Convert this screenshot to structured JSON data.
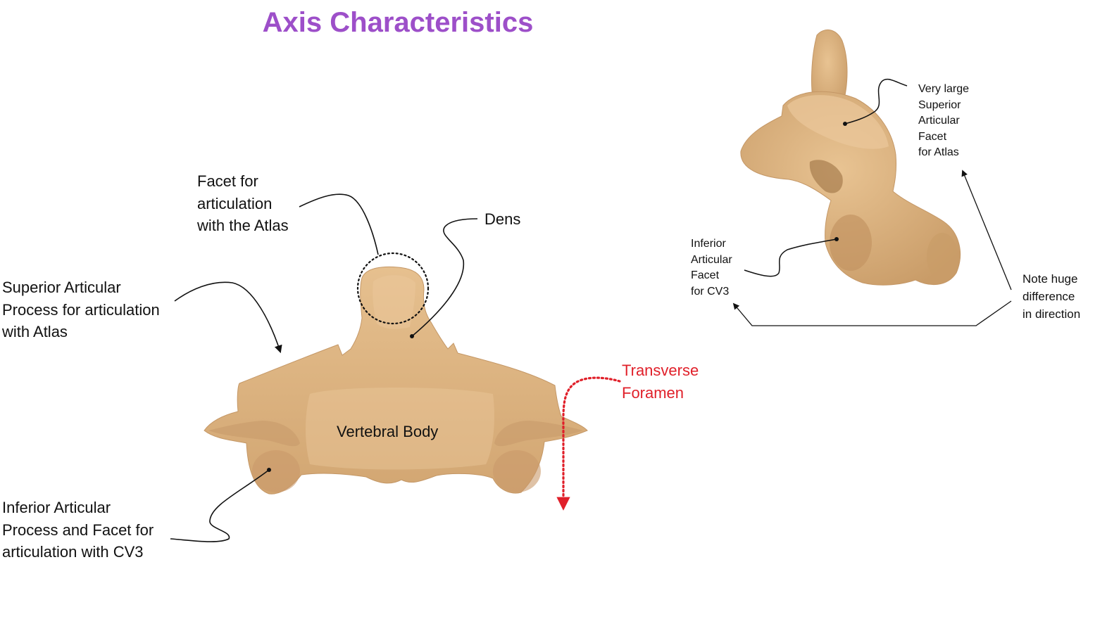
{
  "title": "Axis Characteristics",
  "colors": {
    "title": "#9d4fc9",
    "bone": "#d9b07d",
    "bone_shadow": "#b88d5c",
    "bone_highlight": "#ebc89b",
    "label": "#111111",
    "transverse_label": "#e0202a"
  },
  "front_view": {
    "dens_facet": {
      "lines": [
        "Facet for",
        "articulation",
        "with the Atlas"
      ]
    },
    "dens": {
      "lines": [
        "Dens"
      ]
    },
    "superior_articular_process": {
      "lines": [
        "Superior Articular",
        "Process for articulation",
        "with Atlas"
      ]
    },
    "vertebral_body": {
      "lines": [
        "Vertebral Body"
      ]
    },
    "inferior_articular_process": {
      "lines": [
        "Inferior Articular",
        "Process and Facet for",
        "articulation with CV3"
      ]
    },
    "transverse_foramen": {
      "lines": [
        "Transverse",
        "Foramen"
      ]
    }
  },
  "side_view": {
    "superior_facet": {
      "lines": [
        "Very large",
        "Superior",
        "Articular",
        "Facet",
        "for Atlas"
      ]
    },
    "inferior_facet": {
      "lines": [
        "Inferior",
        "Articular",
        "Facet",
        "for CV3"
      ]
    },
    "direction_note": {
      "lines": [
        "Note huge",
        "difference",
        "in direction"
      ]
    }
  }
}
